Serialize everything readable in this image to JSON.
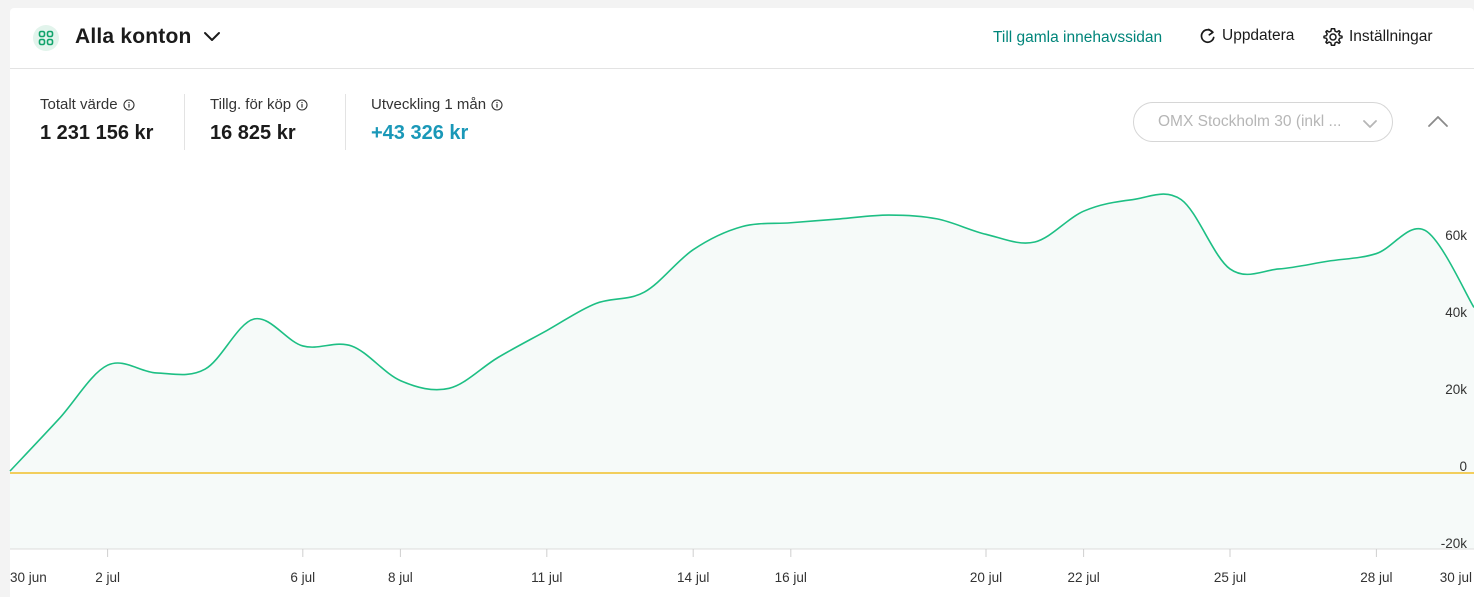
{
  "header": {
    "account_title": "Alla konton",
    "old_holdings_link": "Till gamla innehavssidan",
    "refresh_label": "Uppdatera",
    "settings_label": "Inställningar"
  },
  "stats": [
    {
      "label": "Totalt värde",
      "value": "1 231 156 kr"
    },
    {
      "label": "Tillg. för köp",
      "value": "16 825 kr"
    },
    {
      "label": "Utveckling 1 mån",
      "value": "+43 326 kr"
    }
  ],
  "compare": {
    "selected": "OMX Stockholm 30 (inkl ..."
  },
  "colors": {
    "brand": "#00857a",
    "line": "#1dbf84",
    "area": "#f6faf9",
    "zero_line": "#f0b400",
    "positive": "#1a98b8"
  },
  "chart_data": {
    "type": "area",
    "x_tick_labels": [
      "30 jun",
      "2 jul",
      "6 jul",
      "8 jul",
      "11 jul",
      "14 jul",
      "16 jul",
      "20 jul",
      "22 jul",
      "25 jul",
      "28 jul",
      "30 jul"
    ],
    "y_tick_labels": [
      "60k",
      "40k",
      "20k",
      "0",
      "-20k"
    ],
    "ylim": [
      -20000,
      80000
    ],
    "grid": false,
    "series": [
      {
        "x": [
          "30 jun",
          "1 jul",
          "2 jul",
          "3 jul",
          "4 jul",
          "5 jul",
          "6 jul",
          "7 jul",
          "8 jul",
          "9 jul",
          "10 jul",
          "11 jul",
          "12 jul",
          "13 jul",
          "14 jul",
          "15 jul",
          "16 jul",
          "17 jul",
          "18 jul",
          "19 jul",
          "20 jul",
          "21 jul",
          "22 jul",
          "23 jul",
          "24 jul",
          "25 jul",
          "26 jul",
          "27 jul",
          "28 jul",
          "29 jul",
          "30 jul"
        ],
        "values": [
          500,
          14000,
          28000,
          26000,
          27000,
          40000,
          33000,
          33000,
          24000,
          22000,
          30000,
          37000,
          44000,
          47000,
          58000,
          64000,
          65000,
          66000,
          67000,
          66000,
          62000,
          60000,
          68000,
          71000,
          71000,
          53000,
          53000,
          55000,
          57000,
          63000,
          43000
        ]
      }
    ]
  }
}
